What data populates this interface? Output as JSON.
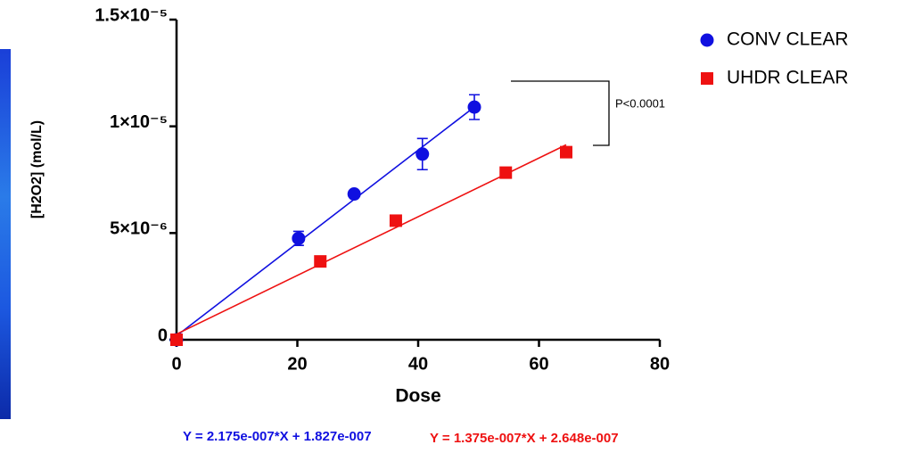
{
  "chart_data": {
    "type": "scatter",
    "y_label": "[H2O2] (mol/L)",
    "x_label": "Dose",
    "xlim": [
      0,
      80
    ],
    "xticks": [
      0,
      20,
      40,
      60,
      80
    ],
    "ylim": [
      0,
      1.5e-05
    ],
    "yticks": [
      0,
      {
        "value": 5e-06,
        "label": "5×10⁻⁶"
      },
      {
        "value": 1e-05,
        "label": "1×10⁻⁵"
      },
      {
        "value": 1.5e-05,
        "label": "1.5×10⁻⁵"
      }
    ],
    "legend_position": "right",
    "series": [
      {
        "name": "CONV CLEAR",
        "color": "#1010e0",
        "marker": "circle",
        "x": [
          0,
          20.2,
          29.4,
          40.7,
          49.3
        ],
        "values": [
          0,
          4.75e-06,
          6.83e-06,
          8.7e-06,
          1.09e-05
        ],
        "errors": [
          0,
          3.3e-07,
          0,
          7.3e-07,
          5.8e-07
        ],
        "fit": {
          "slope": 2.175e-07,
          "intercept": 1.827e-07
        },
        "equation": "Y = 2.175e-007*X + 1.827e-007"
      },
      {
        "name": "UHDR CLEAR",
        "color": "#ee1111",
        "marker": "square",
        "x": [
          0,
          23.8,
          36.3,
          54.5,
          64.5
        ],
        "values": [
          0,
          3.67e-06,
          5.58e-06,
          7.83e-06,
          8.79e-06
        ],
        "errors": [
          0,
          0,
          0,
          0,
          0
        ],
        "fit": {
          "slope": 1.375e-07,
          "intercept": 2.648e-07
        },
        "equation": "Y = 1.375e-007*X + 2.648e-007"
      }
    ],
    "annotation": "P<0.0001"
  }
}
